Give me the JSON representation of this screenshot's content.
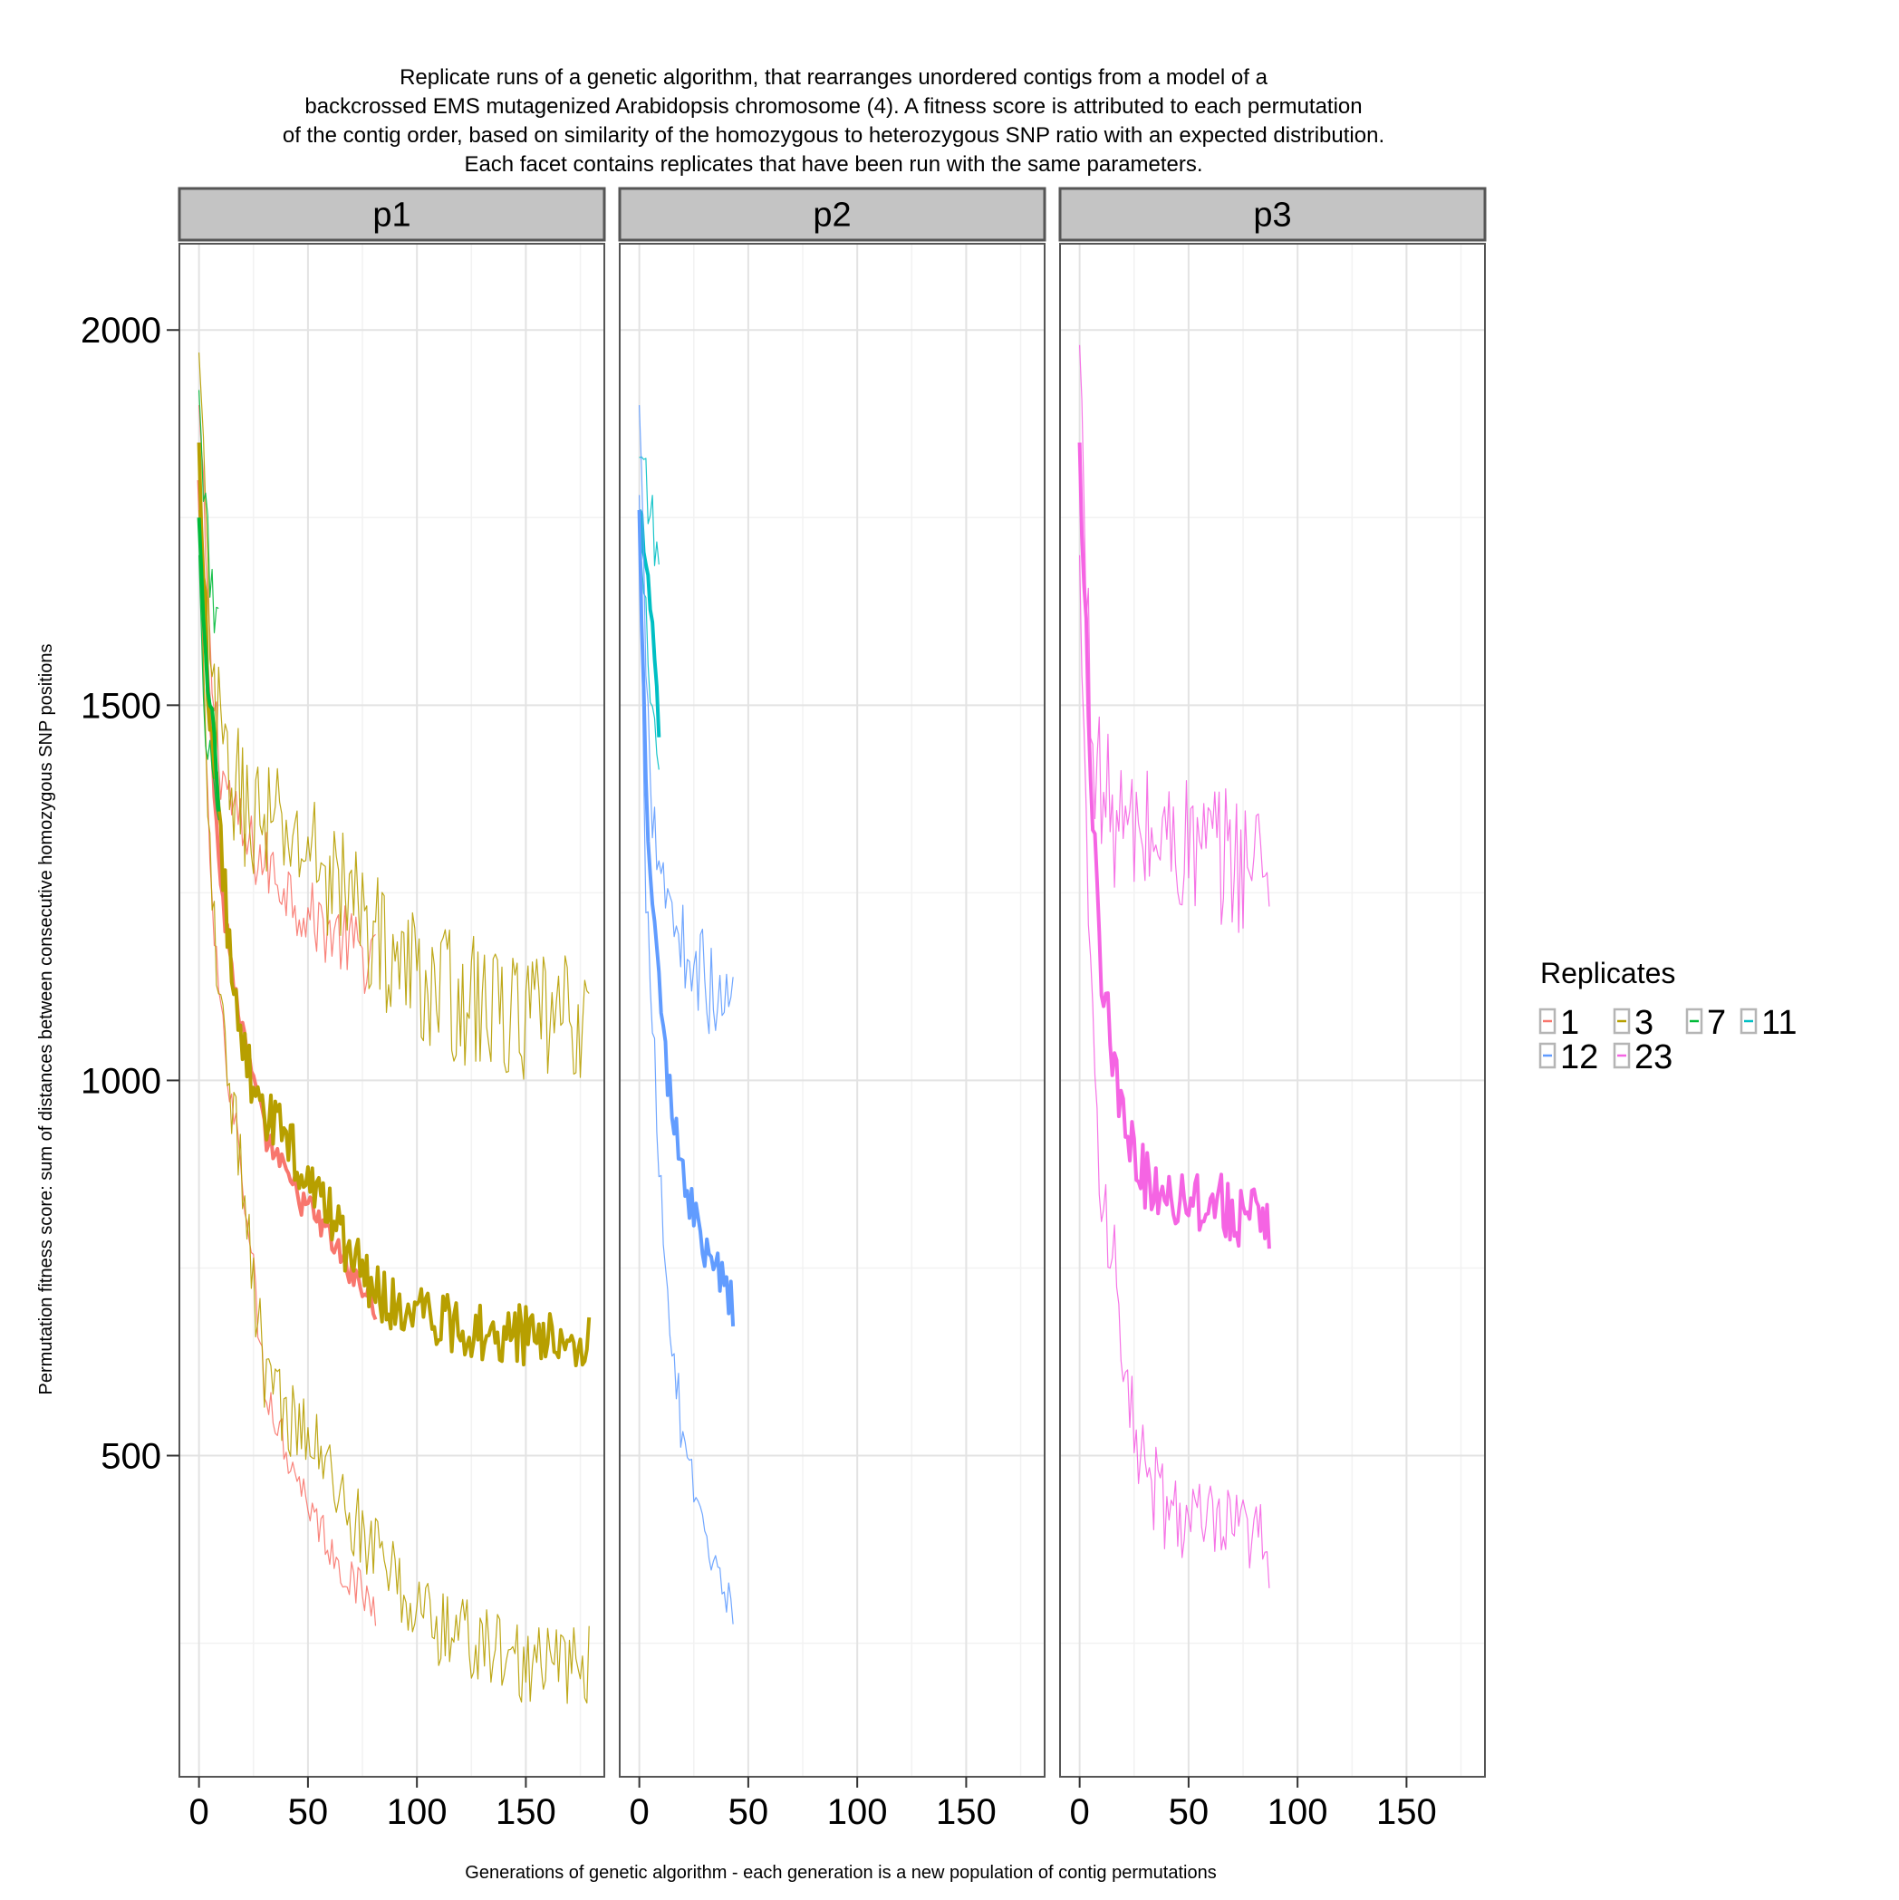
{
  "chart_data": {
    "type": "line",
    "title_lines": [
      "Replicate runs of a genetic algorithm, that rearranges unordered contigs from a model of a",
      "backcrossed EMS mutagenized Arabidopsis chromosome (4). A fitness score is attributed to each permutation",
      "of the contig order, based on similarity of the homozygous to heterozygous SNP ratio with an expected distribution.",
      "Each facet contains replicates that have been run with the same parameters."
    ],
    "xlabel": "Generations of genetic algorithm - each generation is a new population of contig permutations",
    "ylabel": "Permutation fitness score: sum of distances between consecutive homozygous SNP positions",
    "xlim": [
      -9,
      186
    ],
    "ylim": [
      72,
      2115
    ],
    "x_ticks": [
      0,
      50,
      100,
      150
    ],
    "y_ticks": [
      500,
      1000,
      1500,
      2000
    ],
    "grid": true,
    "legend": {
      "title": "Replicates",
      "placement": "right",
      "items": [
        {
          "label": "1",
          "color": "#F8766D"
        },
        {
          "label": "3",
          "color": "#B79F00"
        },
        {
          "label": "7",
          "color": "#00BA38"
        },
        {
          "label": "11",
          "color": "#00BFC4"
        },
        {
          "label": "12",
          "color": "#619CFF"
        },
        {
          "label": "23",
          "color": "#F564E3"
        }
      ]
    },
    "facets": [
      {
        "label": "p1",
        "series": [
          {
            "name": "1",
            "color": "#F8766D",
            "length": 81,
            "mean": [
              [
                0,
                1800
              ],
              [
                5,
                1480
              ],
              [
                10,
                1260
              ],
              [
                15,
                1150
              ],
              [
                20,
                1060
              ],
              [
                30,
                930
              ],
              [
                40,
                870
              ],
              [
                50,
                830
              ],
              [
                60,
                790
              ],
              [
                70,
                740
              ],
              [
                81,
                700
              ]
            ],
            "max": [
              [
                0,
                1900
              ],
              [
                5,
                1560
              ],
              [
                10,
                1420
              ],
              [
                20,
                1320
              ],
              [
                30,
                1290
              ],
              [
                40,
                1260
              ],
              [
                50,
                1220
              ],
              [
                60,
                1200
              ],
              [
                70,
                1180
              ],
              [
                81,
                1150
              ]
            ],
            "min": [
              [
                0,
                1750
              ],
              [
                5,
                1270
              ],
              [
                10,
                1080
              ],
              [
                20,
                880
              ],
              [
                30,
                600
              ],
              [
                40,
                510
              ],
              [
                50,
                440
              ],
              [
                60,
                380
              ],
              [
                70,
                330
              ],
              [
                81,
                300
              ]
            ],
            "amp": 22
          },
          {
            "name": "3",
            "color": "#B79F00",
            "length": 179,
            "mean": [
              [
                0,
                1850
              ],
              [
                5,
                1470
              ],
              [
                10,
                1310
              ],
              [
                15,
                1150
              ],
              [
                20,
                1040
              ],
              [
                30,
                960
              ],
              [
                40,
                920
              ],
              [
                50,
                880
              ],
              [
                60,
                820
              ],
              [
                70,
                770
              ],
              [
                80,
                720
              ],
              [
                100,
                690
              ],
              [
                120,
                670
              ],
              [
                150,
                660
              ],
              [
                179,
                660
              ]
            ],
            "max": [
              [
                0,
                1970
              ],
              [
                5,
                1560
              ],
              [
                10,
                1440
              ],
              [
                20,
                1370
              ],
              [
                30,
                1340
              ],
              [
                50,
                1310
              ],
              [
                70,
                1240
              ],
              [
                90,
                1160
              ],
              [
                110,
                1120
              ],
              [
                130,
                1100
              ],
              [
                150,
                1080
              ],
              [
                179,
                1080
              ]
            ],
            "min": [
              [
                0,
                1760
              ],
              [
                5,
                1280
              ],
              [
                10,
                1100
              ],
              [
                20,
                860
              ],
              [
                30,
                610
              ],
              [
                40,
                560
              ],
              [
                50,
                530
              ],
              [
                70,
                420
              ],
              [
                90,
                330
              ],
              [
                110,
                270
              ],
              [
                130,
                250
              ],
              [
                150,
                220
              ],
              [
                179,
                220
              ]
            ],
            "amp": 40
          },
          {
            "name": "7",
            "color": "#00BA38",
            "length": 9,
            "mean": [
              [
                0,
                1750
              ],
              [
                2,
                1620
              ],
              [
                4,
                1530
              ],
              [
                6,
                1500
              ],
              [
                9,
                1360
              ]
            ],
            "max": [
              [
                0,
                1920
              ],
              [
                2,
                1760
              ],
              [
                4,
                1700
              ],
              [
                9,
                1600
              ]
            ],
            "min": [
              [
                0,
                1700
              ],
              [
                2,
                1500
              ],
              [
                4,
                1460
              ],
              [
                9,
                1350
              ]
            ],
            "amp": 25
          }
        ]
      },
      {
        "label": "p2",
        "series": [
          {
            "name": "11",
            "color": "#00BFC4",
            "length": 9,
            "mean": [
              [
                0,
                1760
              ],
              [
                3,
                1680
              ],
              [
                6,
                1590
              ],
              [
                9,
                1460
              ]
            ],
            "max": [
              [
                0,
                1830
              ],
              [
                3,
                1780
              ],
              [
                6,
                1740
              ],
              [
                9,
                1680
              ]
            ],
            "min": [
              [
                0,
                1720
              ],
              [
                3,
                1610
              ],
              [
                6,
                1500
              ],
              [
                9,
                1380
              ]
            ],
            "amp": 25
          },
          {
            "name": "12",
            "color": "#619CFF",
            "length": 43,
            "mean": [
              [
                0,
                1760
              ],
              [
                3,
                1400
              ],
              [
                6,
                1230
              ],
              [
                10,
                1080
              ],
              [
                15,
                960
              ],
              [
                20,
                880
              ],
              [
                25,
                820
              ],
              [
                30,
                780
              ],
              [
                35,
                750
              ],
              [
                43,
                700
              ]
            ],
            "max": [
              [
                0,
                1900
              ],
              [
                3,
                1580
              ],
              [
                6,
                1380
              ],
              [
                10,
                1290
              ],
              [
                15,
                1230
              ],
              [
                20,
                1180
              ],
              [
                25,
                1160
              ],
              [
                30,
                1140
              ],
              [
                35,
                1100
              ],
              [
                43,
                1100
              ]
            ],
            "min": [
              [
                0,
                1780
              ],
              [
                3,
                1250
              ],
              [
                6,
                1080
              ],
              [
                10,
                850
              ],
              [
                15,
                650
              ],
              [
                20,
                520
              ],
              [
                25,
                440
              ],
              [
                30,
                380
              ],
              [
                35,
                330
              ],
              [
                43,
                290
              ]
            ],
            "amp": 28
          }
        ]
      },
      {
        "label": "p3",
        "series": [
          {
            "name": "23",
            "color": "#F564E3",
            "length": 87,
            "mean": [
              [
                0,
                1850
              ],
              [
                3,
                1580
              ],
              [
                6,
                1370
              ],
              [
                10,
                1150
              ],
              [
                15,
                1020
              ],
              [
                20,
                940
              ],
              [
                30,
                870
              ],
              [
                40,
                850
              ],
              [
                60,
                840
              ],
              [
                87,
                800
              ]
            ],
            "max": [
              [
                0,
                1980
              ],
              [
                3,
                1640
              ],
              [
                6,
                1470
              ],
              [
                10,
                1380
              ],
              [
                20,
                1330
              ],
              [
                40,
                1320
              ],
              [
                60,
                1300
              ],
              [
                87,
                1290
              ]
            ],
            "min": [
              [
                0,
                1700
              ],
              [
                3,
                1340
              ],
              [
                6,
                1080
              ],
              [
                10,
                830
              ],
              [
                15,
                780
              ],
              [
                20,
                610
              ],
              [
                30,
                470
              ],
              [
                40,
                430
              ],
              [
                60,
                400
              ],
              [
                87,
                380
              ]
            ],
            "amp": 45
          }
        ]
      }
    ]
  }
}
